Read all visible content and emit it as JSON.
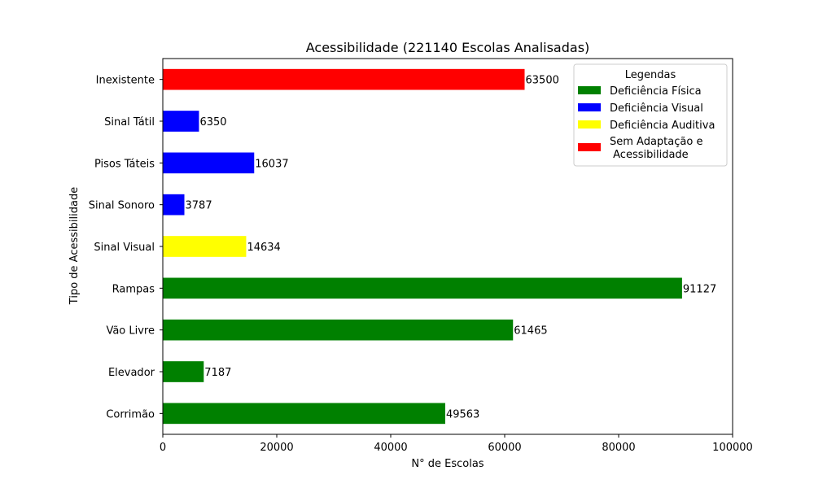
{
  "chart_data": {
    "type": "bar",
    "orientation": "horizontal",
    "title": "Acessibilidade (221140 Escolas Analisadas)",
    "xlabel": "N° de Escolas",
    "ylabel": "Tipo de Acessibilidade",
    "xlim": [
      0,
      100000
    ],
    "xticks": [
      "0",
      "20000",
      "40000",
      "60000",
      "80000",
      "100000"
    ],
    "grid": false,
    "legend_placement": "top-right",
    "categories": [
      "Corrimão",
      "Elevador",
      "Vão Livre",
      "Rampas",
      "Sinal Visual",
      "Sinal Sonoro",
      "Pisos Táteis",
      "Sinal Tátil",
      "Inexistente"
    ],
    "values": [
      49563,
      7187,
      61465,
      91127,
      14634,
      3787,
      16037,
      6350,
      63500
    ],
    "value_labels": [
      "49563",
      "7187",
      "61465",
      "91127",
      "14634",
      "3787",
      "16037",
      "6350",
      "63500"
    ],
    "bar_groups": [
      "fisica",
      "fisica",
      "fisica",
      "fisica",
      "auditiva",
      "visual",
      "visual",
      "visual",
      "sem"
    ],
    "legend": {
      "title": "Legendas",
      "entries": [
        {
          "key": "fisica",
          "label": "Deficiência Física",
          "color": "#008000"
        },
        {
          "key": "visual",
          "label": "Deficiência Visual",
          "color": "#0000ff"
        },
        {
          "key": "auditiva",
          "label": "Deficiência Auditiva",
          "color": "#ffff00"
        },
        {
          "key": "sem",
          "label_lines": [
            "Sem Adaptação e",
            " Acessibilidade"
          ],
          "color": "#ff0000"
        }
      ]
    }
  }
}
